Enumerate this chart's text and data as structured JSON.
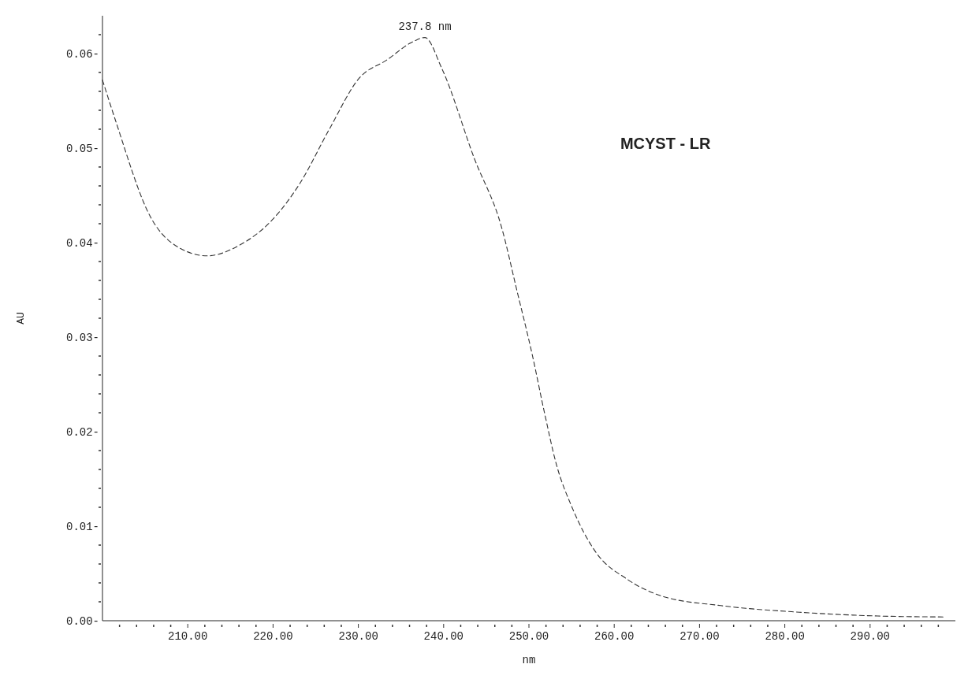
{
  "chart_data": {
    "type": "line",
    "xlabel": "nm",
    "ylabel": "AU",
    "annotations": [
      {
        "text": "237.8 nm",
        "x": 237.8,
        "y": 0.0617
      },
      "MCYST - LR"
    ],
    "series": [
      {
        "color": "#333333",
        "line_style": "dashed",
        "x": [
          200,
          201.5,
          205.7,
          208.9,
          212.3,
          216.0,
          219.9,
          223.1,
          226.6,
          230.1,
          233.3,
          236.5,
          237.8,
          239.8,
          243.6,
          246.8,
          248.6,
          250.4,
          251.8,
          253.2,
          255.1,
          257.8,
          261.5,
          265.6,
          272.5,
          281.7,
          290.9,
          298.6
        ],
        "values": [
          0.0572,
          0.053,
          0.0426,
          0.0395,
          0.0386,
          0.0397,
          0.0424,
          0.0462,
          0.052,
          0.0574,
          0.0593,
          0.0613,
          0.0617,
          0.0584,
          0.0489,
          0.0416,
          0.0349,
          0.0281,
          0.0221,
          0.0166,
          0.0119,
          0.0073,
          0.0044,
          0.0026,
          0.0016,
          0.0009,
          0.0005,
          0.0004
        ]
      }
    ],
    "xlim": [
      200,
      300
    ],
    "xticks": [
      {
        "value": 202,
        "label": null
      },
      {
        "value": 204,
        "label": null
      },
      {
        "value": 206,
        "label": null
      },
      {
        "value": 208,
        "label": null
      },
      {
        "value": 210,
        "label": "210.00"
      },
      {
        "value": 212,
        "label": null
      },
      {
        "value": 214,
        "label": null
      },
      {
        "value": 216,
        "label": null
      },
      {
        "value": 218,
        "label": null
      },
      {
        "value": 220,
        "label": "220.00"
      },
      {
        "value": 222,
        "label": null
      },
      {
        "value": 224,
        "label": null
      },
      {
        "value": 226,
        "label": null
      },
      {
        "value": 228,
        "label": null
      },
      {
        "value": 230,
        "label": "230.00"
      },
      {
        "value": 232,
        "label": null
      },
      {
        "value": 234,
        "label": null
      },
      {
        "value": 236,
        "label": null
      },
      {
        "value": 238,
        "label": null
      },
      {
        "value": 240,
        "label": "240.00"
      },
      {
        "value": 242,
        "label": null
      },
      {
        "value": 244,
        "label": null
      },
      {
        "value": 246,
        "label": null
      },
      {
        "value": 248,
        "label": null
      },
      {
        "value": 250,
        "label": "250.00"
      },
      {
        "value": 252,
        "label": null
      },
      {
        "value": 254,
        "label": null
      },
      {
        "value": 256,
        "label": null
      },
      {
        "value": 258,
        "label": null
      },
      {
        "value": 260,
        "label": "260.00"
      },
      {
        "value": 262,
        "label": null
      },
      {
        "value": 264,
        "label": null
      },
      {
        "value": 266,
        "label": null
      },
      {
        "value": 268,
        "label": null
      },
      {
        "value": 270,
        "label": "270.00"
      },
      {
        "value": 272,
        "label": null
      },
      {
        "value": 274,
        "label": null
      },
      {
        "value": 276,
        "label": null
      },
      {
        "value": 278,
        "label": null
      },
      {
        "value": 280,
        "label": "280.00"
      },
      {
        "value": 282,
        "label": null
      },
      {
        "value": 284,
        "label": null
      },
      {
        "value": 286,
        "label": null
      },
      {
        "value": 288,
        "label": null
      },
      {
        "value": 290,
        "label": "290.00"
      },
      {
        "value": 292,
        "label": null
      },
      {
        "value": 294,
        "label": null
      },
      {
        "value": 296,
        "label": null
      },
      {
        "value": 298,
        "label": null
      }
    ],
    "ylim": [
      0,
      0.064
    ],
    "yticks": [
      {
        "value": 0,
        "label": "0.00-"
      },
      {
        "value": 0.002,
        "label": null
      },
      {
        "value": 0.004,
        "label": null
      },
      {
        "value": 0.006,
        "label": null
      },
      {
        "value": 0.008,
        "label": null
      },
      {
        "value": 0.01,
        "label": "0.01-"
      },
      {
        "value": 0.012,
        "label": null
      },
      {
        "value": 0.014,
        "label": null
      },
      {
        "value": 0.016,
        "label": null
      },
      {
        "value": 0.018,
        "label": null
      },
      {
        "value": 0.02,
        "label": "0.02-"
      },
      {
        "value": 0.022,
        "label": null
      },
      {
        "value": 0.024,
        "label": null
      },
      {
        "value": 0.026,
        "label": null
      },
      {
        "value": 0.028,
        "label": null
      },
      {
        "value": 0.03,
        "label": "0.03-"
      },
      {
        "value": 0.032,
        "label": null
      },
      {
        "value": 0.034,
        "label": null
      },
      {
        "value": 0.036,
        "label": null
      },
      {
        "value": 0.038,
        "label": null
      },
      {
        "value": 0.04,
        "label": "0.04-"
      },
      {
        "value": 0.042,
        "label": null
      },
      {
        "value": 0.044,
        "label": null
      },
      {
        "value": 0.046,
        "label": null
      },
      {
        "value": 0.048,
        "label": null
      },
      {
        "value": 0.05,
        "label": "0.05-"
      },
      {
        "value": 0.052,
        "label": null
      },
      {
        "value": 0.054,
        "label": null
      },
      {
        "value": 0.056,
        "label": null
      },
      {
        "value": 0.058,
        "label": null
      },
      {
        "value": 0.06,
        "label": "0.06-"
      },
      {
        "value": 0.062,
        "label": null
      }
    ]
  }
}
